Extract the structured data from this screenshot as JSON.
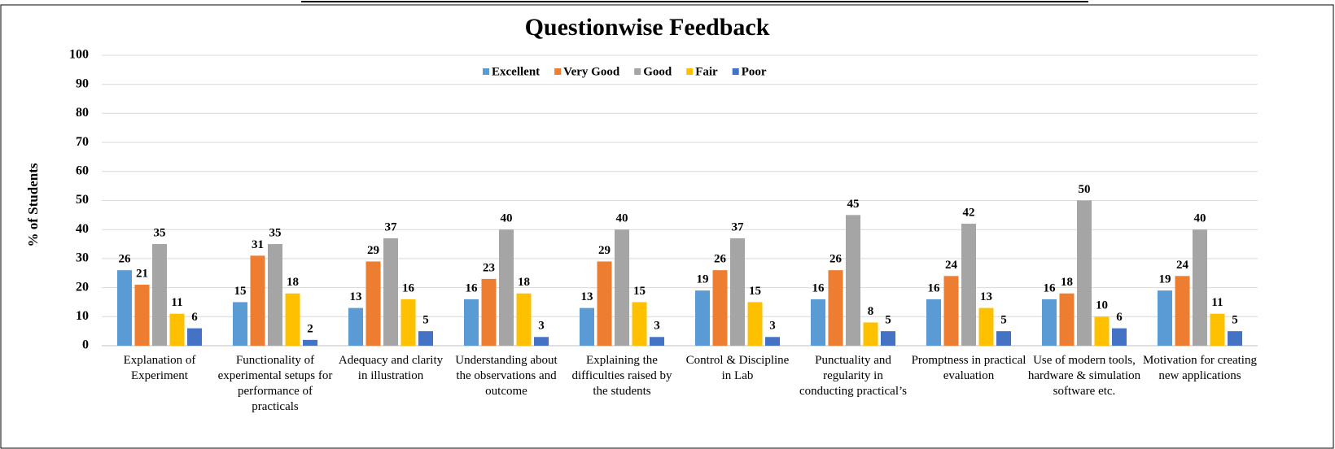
{
  "chart_data": {
    "type": "bar",
    "title": "Questionwise Feedback",
    "y_label": "% of Students",
    "categories": [
      "Explanation of Experiment",
      "Functionality of experimental setups for performance of practicals",
      "Adequacy and clarity in illustration",
      "Understanding about the observations and outcome",
      "Explaining the difficulties raised by the students",
      "Control & Discipline in Lab",
      "Punctuality and regularity in conducting practical’s",
      "Promptness in practical evaluation",
      "Use of modern tools, hardware & simulation software etc.",
      "Motivation for creating new applications"
    ],
    "series": [
      {
        "name": "Excellent",
        "color": "#5b9bd5",
        "values": [
          26,
          15,
          13,
          16,
          13,
          19,
          16,
          16,
          16,
          19
        ]
      },
      {
        "name": "Very Good",
        "color": "#ed7d31",
        "values": [
          21,
          31,
          29,
          23,
          29,
          26,
          26,
          24,
          18,
          24
        ]
      },
      {
        "name": "Good",
        "color": "#a5a5a5",
        "values": [
          35,
          35,
          37,
          40,
          40,
          37,
          45,
          42,
          50,
          40
        ]
      },
      {
        "name": "Fair",
        "color": "#ffc000",
        "values": [
          11,
          18,
          16,
          18,
          15,
          15,
          8,
          13,
          10,
          11
        ]
      },
      {
        "name": "Poor",
        "color": "#4472c4",
        "values": [
          6,
          2,
          5,
          3,
          3,
          3,
          5,
          5,
          6,
          5
        ]
      }
    ],
    "ylim": [
      0,
      100
    ],
    "yticks": [
      0,
      10,
      20,
      30,
      40,
      50,
      60,
      70,
      80,
      90,
      100
    ],
    "grid": true,
    "legend": "top"
  }
}
